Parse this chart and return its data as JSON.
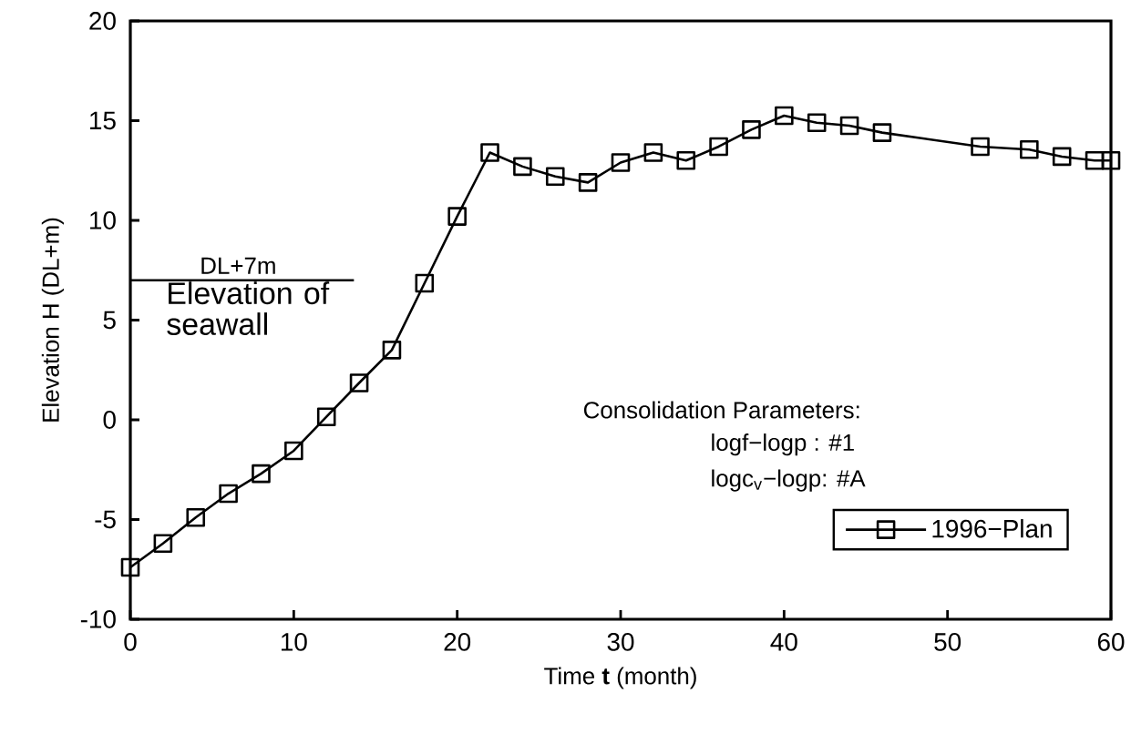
{
  "chart_data": {
    "type": "line",
    "xlabel": "Time **t** (month)",
    "ylabel": "Elevation H (DL+m)",
    "x": [
      0,
      2,
      4,
      6,
      8,
      10,
      12,
      14,
      16,
      18,
      20,
      22,
      24,
      26,
      28,
      30,
      32,
      34,
      36,
      38,
      40,
      42,
      44,
      46,
      52,
      55,
      57,
      59,
      60
    ],
    "series": [
      {
        "name": "1996−Plan",
        "color": "#000000",
        "values": [
          -7.4,
          -6.2,
          -4.9,
          -3.7,
          -2.7,
          -1.55,
          0.15,
          1.85,
          3.5,
          6.85,
          10.2,
          13.4,
          12.7,
          12.2,
          11.9,
          12.9,
          13.4,
          13.0,
          13.7,
          14.55,
          15.25,
          14.9,
          14.75,
          14.4,
          13.7,
          13.55,
          13.2,
          13.0,
          13.0
        ]
      }
    ],
    "xlim": [
      0,
      60
    ],
    "ylim": [
      -10,
      20
    ],
    "xticks": [
      0,
      10,
      20,
      30,
      40,
      50,
      60
    ],
    "yticks": [
      -10,
      -5,
      0,
      5,
      10,
      15,
      20
    ],
    "ref_lines": [
      {
        "axis": "y",
        "value": 7,
        "label": "DL+7m",
        "color": "#000000"
      }
    ],
    "annotations": [
      "Elevation of seawall",
      "Consolidation Parameters:",
      "logf−logp  :  #1",
      "logc$_{v}$−logp:  #A"
    ],
    "legend": "bottom right",
    "marker": "square",
    "line_style": "solid",
    "grid": false
  }
}
